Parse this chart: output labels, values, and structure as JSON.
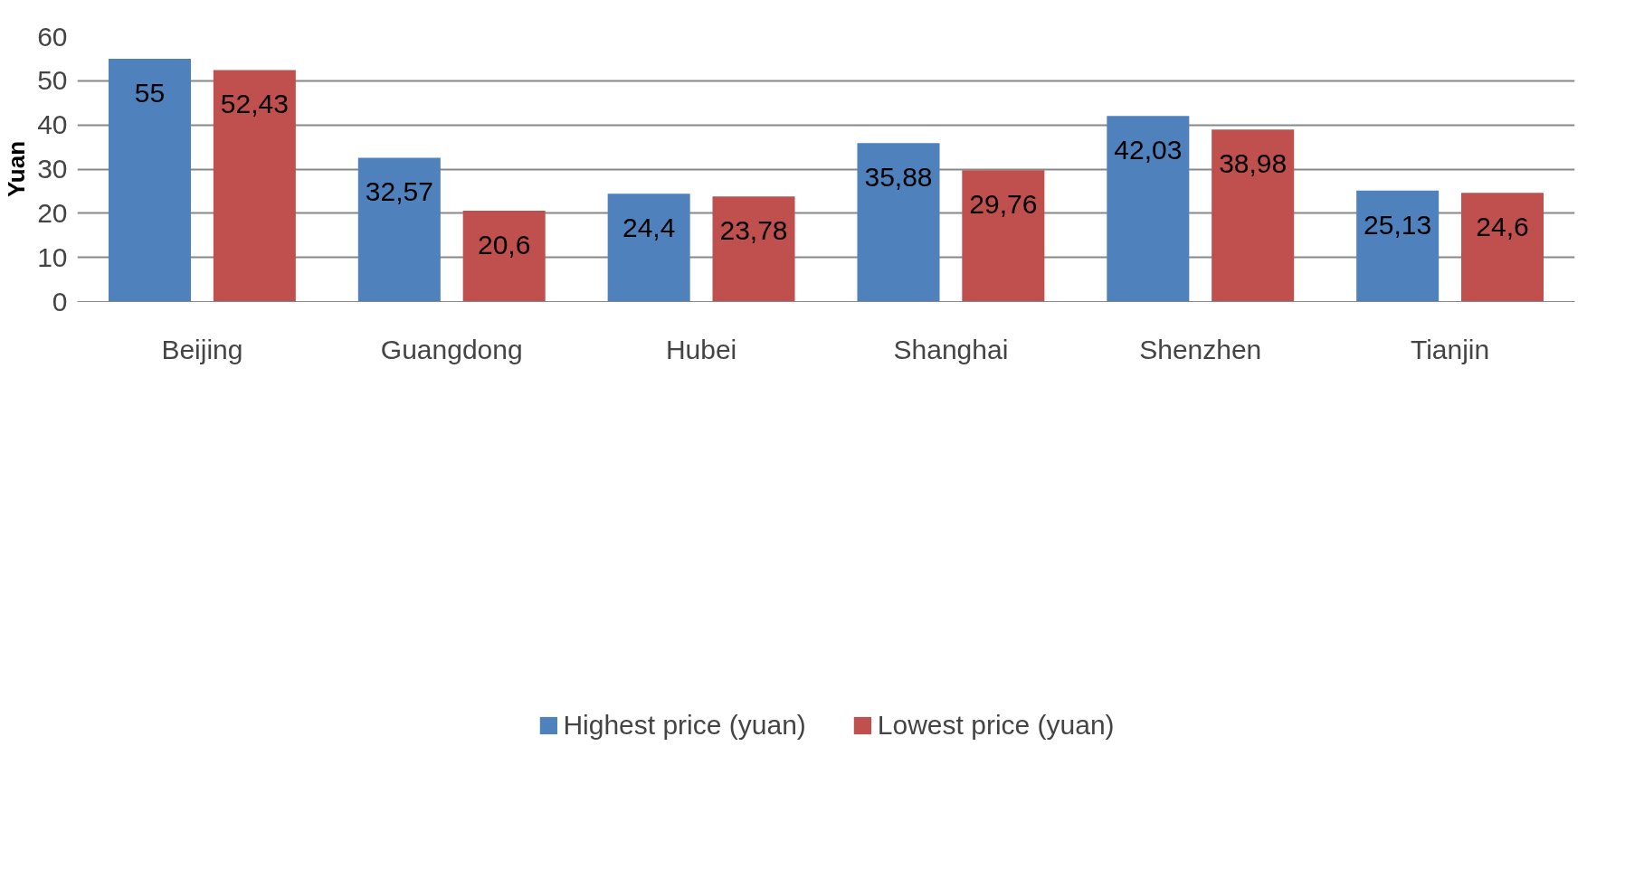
{
  "chart_data": {
    "type": "bar",
    "ylabel": "Yuan",
    "categories": [
      "Beijing",
      "Guangdong",
      "Hubei",
      "Shanghai",
      "Shenzhen",
      "Tianjin"
    ],
    "series": [
      {
        "name": "Highest price (yuan)",
        "color": "#4f81bd",
        "values": [
          55,
          32.57,
          24.4,
          35.88,
          42.03,
          25.13
        ],
        "value_labels": [
          "55",
          "32,57",
          "24,4",
          "35,88",
          "42,03",
          "25,13"
        ]
      },
      {
        "name": "Lowest price (yuan)",
        "color": "#c0504d",
        "values": [
          52.43,
          20.6,
          23.78,
          29.76,
          38.98,
          24.6
        ],
        "value_labels": [
          "52,43",
          "20,6",
          "23,78",
          "29,76",
          "38,98",
          "24,6"
        ]
      }
    ],
    "ylim": [
      0,
      60
    ],
    "yticks": [
      0,
      10,
      20,
      30,
      40,
      50,
      60
    ],
    "grid": "y",
    "legend": "bottom"
  }
}
